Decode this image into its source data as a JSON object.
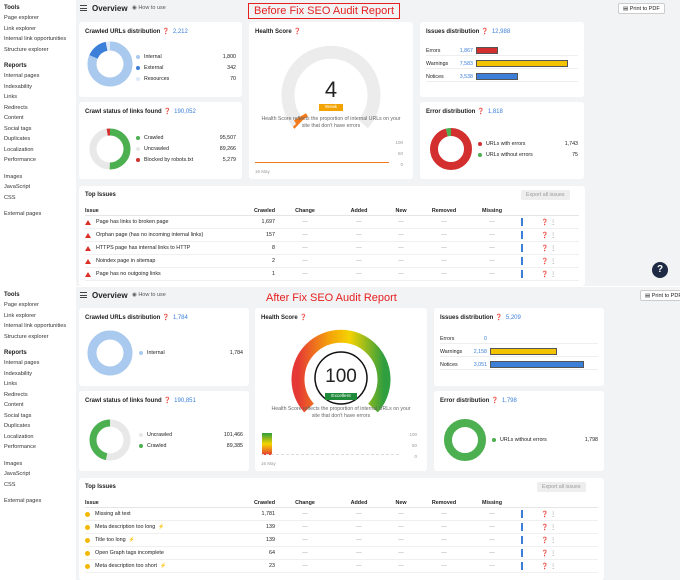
{
  "common": {
    "overview": "Overview",
    "how_to_use": "How to use",
    "print_pdf": "Print to PDF",
    "sidebar": {
      "tools_hd": "Tools",
      "tools": [
        "Page explorer",
        "Link explorer",
        "Internal link opportunities",
        "Structure explorer"
      ],
      "reports_hd": "Reports",
      "reports": [
        "Internal pages",
        "Indexability",
        "Links",
        "Redirects",
        "Content",
        "Social tags",
        "Duplicates",
        "Localization",
        "Performance"
      ],
      "other": [
        "Images",
        "JavaScript",
        "CSS"
      ],
      "last": "External pages"
    },
    "crawled_title": "Crawled URLs distribution",
    "crawl_status_title": "Crawl status of links found",
    "health_title": "Health Score",
    "health_desc": "Health Score reflects the proportion of internal URLs on your site that don't have errors",
    "issues_title": "Issues distribution",
    "errors_title": "Error distribution",
    "top_issues": "Top Issues",
    "export": "Export all issues",
    "cols": [
      "Issue",
      "Crawled",
      "Change",
      "Added",
      "New",
      "Removed",
      "Missing"
    ],
    "dash": "—",
    "date_label": "16 May",
    "ticks": [
      "100",
      "50",
      "0"
    ]
  },
  "before": {
    "banner": "Before Fix SEO Audit Report",
    "crawled_total": "2,212",
    "crawled_legend": [
      {
        "label": "Internal",
        "value": "1,800",
        "color": "#a9c9ee"
      },
      {
        "label": "External",
        "value": "342",
        "color": "#3b7fd9"
      },
      {
        "label": "Resources",
        "value": "70",
        "color": "#dde9f7"
      }
    ],
    "crawl_status_total": "190,052",
    "crawl_status_legend": [
      {
        "label": "Crawled",
        "value": "95,507",
        "color": "#4caf50"
      },
      {
        "label": "Uncrawled",
        "value": "89,266",
        "color": "#e8e8e8"
      },
      {
        "label": "Blocked by robots.txt",
        "value": "5,279",
        "color": "#d32f2f"
      }
    ],
    "score": "4",
    "score_label": "Weak",
    "score_value": 4,
    "issues_total": "12,988",
    "issues": [
      {
        "label": "Errors",
        "value": "1,867",
        "color": "#d32f2f",
        "pct": 0.24
      },
      {
        "label": "Warnings",
        "value": "7,583",
        "color": "#f3c300",
        "pct": 1.0
      },
      {
        "label": "Notices",
        "value": "3,538",
        "color": "#3b7fd9",
        "pct": 0.46
      }
    ],
    "errors_total": "1,818",
    "errors_legend": [
      {
        "label": "URLs with errors",
        "value": "1,743",
        "color": "#d32f2f"
      },
      {
        "label": "URLs without errors",
        "value": "75",
        "color": "#4caf50"
      }
    ],
    "rows": [
      {
        "issue": "Page has links to broken page",
        "crawled": "1,697"
      },
      {
        "issue": "Orphan page (has no incoming internal links)",
        "crawled": "157"
      },
      {
        "issue": "HTTPS page has internal links to HTTP",
        "crawled": "8"
      },
      {
        "issue": "Noindex page in sitemap",
        "crawled": "2"
      },
      {
        "issue": "Page has no outgoing links",
        "crawled": "1"
      }
    ]
  },
  "after": {
    "banner": "After Fix SEO Audit Report",
    "crawled_total": "1,784",
    "crawled_legend": [
      {
        "label": "Internal",
        "value": "1,784",
        "color": "#a9c9ee"
      }
    ],
    "crawl_status_total": "190,851",
    "crawl_status_legend": [
      {
        "label": "Uncrawled",
        "value": "101,466",
        "color": "#e8e8e8"
      },
      {
        "label": "Crawled",
        "value": "89,385",
        "color": "#4caf50"
      }
    ],
    "score": "100",
    "score_label": "Excellent",
    "issues_total": "5,209",
    "issues": [
      {
        "label": "Errors",
        "value": "0",
        "color": "#d32f2f",
        "pct": 0
      },
      {
        "label": "Warnings",
        "value": "2,158",
        "color": "#f3c300",
        "pct": 0.71
      },
      {
        "label": "Notices",
        "value": "3,051",
        "color": "#3b7fd9",
        "pct": 1.0
      }
    ],
    "errors_total": "1,798",
    "errors_legend": [
      {
        "label": "URLs without errors",
        "value": "1,798",
        "color": "#4caf50"
      }
    ],
    "rows": [
      {
        "issue": "Missing alt text",
        "crawled": "1,781",
        "bolt": false
      },
      {
        "issue": "Meta description too long",
        "crawled": "139",
        "bolt": true
      },
      {
        "issue": "Title too long",
        "crawled": "139",
        "bolt": true
      },
      {
        "issue": "Open Graph tags incomplete",
        "crawled": "64",
        "bolt": false
      },
      {
        "issue": "Meta description too short",
        "crawled": "23",
        "bolt": true
      }
    ]
  }
}
